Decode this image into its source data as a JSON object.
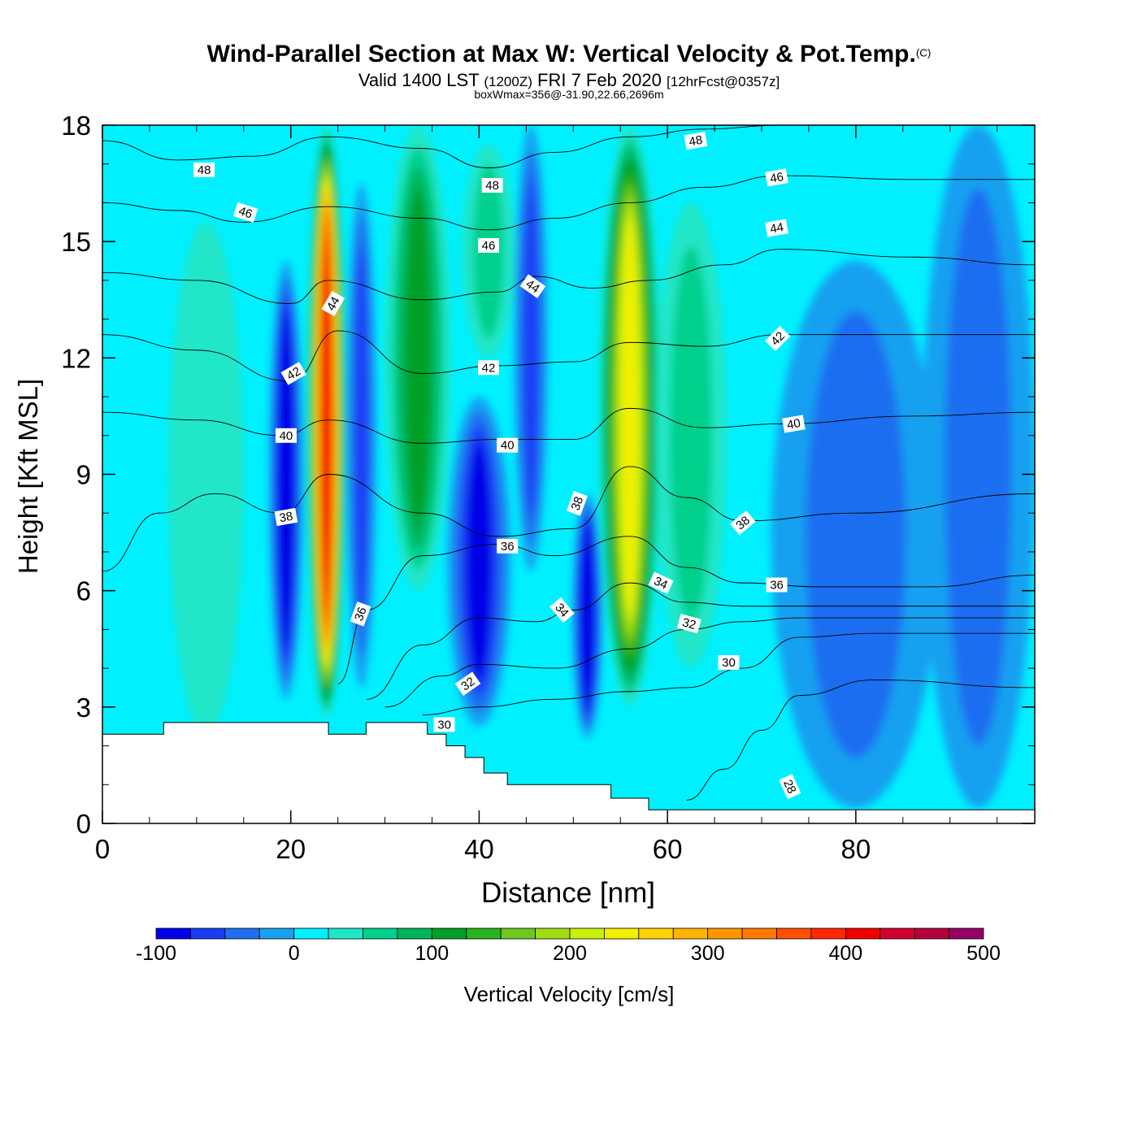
{
  "header": {
    "title": "Wind-Parallel Section at Max W: Vertical Velocity & Pot.Temp.",
    "copyright": "(C)",
    "valid_prefix": "Valid 1400 LST",
    "valid_utc": "(1200Z)",
    "valid_date": "FRI 7 Feb 2020",
    "forecast": "[12hrFcst@0357z]",
    "box_info": "boxWmax=356@-31.90,22.66,2696m"
  },
  "chart_data": {
    "type": "contour",
    "xlabel": "Distance [nm]",
    "ylabel": "Height [Kft MSL]",
    "xlim": [
      0,
      99
    ],
    "ylim": [
      0,
      18
    ],
    "x_ticks": [
      0,
      20,
      40,
      60,
      80
    ],
    "y_ticks": [
      0,
      3,
      6,
      9,
      12,
      15,
      18
    ],
    "colorbar": {
      "label": "Vertical Velocity [cm/s]",
      "ticks": [
        -100,
        0,
        100,
        200,
        300,
        400,
        500
      ],
      "levels": [
        -100,
        -75,
        -50,
        -25,
        0,
        25,
        50,
        75,
        100,
        125,
        150,
        175,
        200,
        225,
        250,
        275,
        300,
        325,
        350,
        375,
        400,
        425,
        450,
        475,
        500
      ],
      "colors": [
        "#0000e6",
        "#1a3cf5",
        "#1f6ef0",
        "#19a0f0",
        "#00f0ff",
        "#20e6c8",
        "#00d08c",
        "#00b45a",
        "#00a028",
        "#28b41e",
        "#6ec81e",
        "#a0dc14",
        "#c8f00a",
        "#f0f000",
        "#ffd200",
        "#ffb400",
        "#ff9600",
        "#ff7800",
        "#ff5000",
        "#ff2800",
        "#f00000",
        "#d20032",
        "#b4003c",
        "#960064"
      ]
    },
    "velocity_columns": [
      {
        "x": 11,
        "y0": 2.3,
        "y1": 15.5,
        "halfwidth": 4.0,
        "value": 35
      },
      {
        "x": 19.5,
        "y0": 3.2,
        "y1": 14.5,
        "halfwidth": 1.8,
        "value": -100
      },
      {
        "x": 23.8,
        "y0": 2.7,
        "y1": 18,
        "halfwidth": 2.0,
        "value": 420
      },
      {
        "x": 27.5,
        "y0": 3.5,
        "y1": 16.5,
        "halfwidth": 1.6,
        "value": -70
      },
      {
        "x": 33.5,
        "y0": 6.0,
        "y1": 18,
        "halfwidth": 3.5,
        "value": 120
      },
      {
        "x": 40,
        "y0": 2.5,
        "y1": 11.0,
        "halfwidth": 3.4,
        "value": -90
      },
      {
        "x": 41,
        "y0": 12,
        "y1": 17.5,
        "halfwidth": 2.8,
        "value": 70
      },
      {
        "x": 45.5,
        "y0": 6.5,
        "y1": 18,
        "halfwidth": 1.8,
        "value": -60
      },
      {
        "x": 51.5,
        "y0": 2.2,
        "y1": 8.5,
        "halfwidth": 1.6,
        "value": -100
      },
      {
        "x": 56,
        "y0": 3.0,
        "y1": 18,
        "halfwidth": 3.3,
        "value": 250
      },
      {
        "x": 62.5,
        "y0": 4.0,
        "y1": 16.0,
        "halfwidth": 3.8,
        "value": 55
      },
      {
        "x": 80,
        "y0": 0.4,
        "y1": 14.5,
        "halfwidth": 9.0,
        "value": -35
      },
      {
        "x": 93,
        "y0": 0.4,
        "y1": 18,
        "halfwidth": 6.0,
        "value": -35
      }
    ],
    "terrain": [
      [
        0,
        2.3
      ],
      [
        6.5,
        2.3
      ],
      [
        6.5,
        2.6
      ],
      [
        24,
        2.6
      ],
      [
        24,
        2.3
      ],
      [
        28,
        2.3
      ],
      [
        28,
        2.6
      ],
      [
        34.5,
        2.6
      ],
      [
        34.5,
        2.3
      ],
      [
        36.5,
        2.3
      ],
      [
        36.5,
        2.0
      ],
      [
        38.5,
        2.0
      ],
      [
        38.5,
        1.7
      ],
      [
        40.5,
        1.7
      ],
      [
        40.5,
        1.3
      ],
      [
        43,
        1.3
      ],
      [
        43,
        1.0
      ],
      [
        54,
        1.0
      ],
      [
        54,
        0.65
      ],
      [
        58,
        0.65
      ],
      [
        58,
        0.35
      ],
      [
        99,
        0.35
      ]
    ],
    "theta_contours": [
      {
        "label": "28",
        "points": [
          [
            62,
            0.6
          ],
          [
            66,
            1.4
          ],
          [
            70,
            2.4
          ],
          [
            74,
            3.3
          ],
          [
            82,
            3.7
          ],
          [
            99,
            3.5
          ]
        ]
      },
      {
        "label": "30",
        "points": [
          [
            34,
            2.8
          ],
          [
            40,
            3.0
          ],
          [
            48,
            3.2
          ],
          [
            56,
            3.4
          ],
          [
            62,
            3.5
          ],
          [
            68,
            4.0
          ],
          [
            74,
            4.8
          ],
          [
            82,
            4.9
          ],
          [
            99,
            4.9
          ]
        ]
      },
      {
        "label": "32",
        "points": [
          [
            30,
            3.0
          ],
          [
            36,
            3.8
          ],
          [
            40,
            4.1
          ],
          [
            48,
            4.0
          ],
          [
            56,
            4.5
          ],
          [
            62,
            5.0
          ],
          [
            68,
            5.2
          ],
          [
            74,
            5.3
          ],
          [
            82,
            5.3
          ],
          [
            99,
            5.3
          ]
        ]
      },
      {
        "label": "34",
        "points": [
          [
            28,
            3.2
          ],
          [
            34,
            4.6
          ],
          [
            40,
            5.3
          ],
          [
            46,
            5.2
          ],
          [
            50,
            5.5
          ],
          [
            56,
            6.2
          ],
          [
            62,
            5.7
          ],
          [
            68,
            5.6
          ],
          [
            76,
            5.6
          ],
          [
            99,
            5.6
          ]
        ]
      },
      {
        "label": "36",
        "points": [
          [
            25,
            3.6
          ],
          [
            28,
            5.5
          ],
          [
            34,
            6.9
          ],
          [
            42,
            7.2
          ],
          [
            48,
            6.9
          ],
          [
            56,
            7.4
          ],
          [
            62,
            6.6
          ],
          [
            68,
            6.2
          ],
          [
            76,
            6.1
          ],
          [
            88,
            6.1
          ],
          [
            99,
            6.4
          ]
        ]
      },
      {
        "label": "38",
        "points": [
          [
            0,
            6.5
          ],
          [
            6,
            8.0
          ],
          [
            12,
            8.5
          ],
          [
            19,
            8.0
          ],
          [
            24,
            9.0
          ],
          [
            34,
            8.0
          ],
          [
            42,
            7.4
          ],
          [
            50,
            7.6
          ],
          [
            56,
            9.2
          ],
          [
            62,
            8.4
          ],
          [
            68,
            7.8
          ],
          [
            80,
            8.0
          ],
          [
            99,
            8.5
          ]
        ]
      },
      {
        "label": "40",
        "points": [
          [
            0,
            10.6
          ],
          [
            10,
            10.4
          ],
          [
            19,
            10.0
          ],
          [
            24,
            10.4
          ],
          [
            34,
            9.8
          ],
          [
            42,
            9.9
          ],
          [
            50,
            9.9
          ],
          [
            56,
            10.7
          ],
          [
            64,
            10.2
          ],
          [
            72,
            10.3
          ],
          [
            86,
            10.5
          ],
          [
            99,
            10.6
          ]
        ]
      },
      {
        "label": "42",
        "points": [
          [
            0,
            12.6
          ],
          [
            10,
            12.2
          ],
          [
            20,
            11.4
          ],
          [
            25,
            12.7
          ],
          [
            34,
            11.6
          ],
          [
            42,
            11.8
          ],
          [
            50,
            11.9
          ],
          [
            56,
            12.4
          ],
          [
            64,
            12.3
          ],
          [
            72,
            12.6
          ],
          [
            86,
            12.6
          ],
          [
            99,
            12.6
          ]
        ]
      },
      {
        "label": "44",
        "points": [
          [
            0,
            14.2
          ],
          [
            10,
            14.0
          ],
          [
            20,
            13.4
          ],
          [
            24,
            14.0
          ],
          [
            34,
            13.5
          ],
          [
            42,
            13.7
          ],
          [
            46,
            14.1
          ],
          [
            52,
            13.8
          ],
          [
            58,
            14.0
          ],
          [
            66,
            14.4
          ],
          [
            72,
            14.8
          ],
          [
            86,
            14.6
          ],
          [
            99,
            14.4
          ]
        ]
      },
      {
        "label": "46",
        "points": [
          [
            0,
            16.0
          ],
          [
            8,
            15.8
          ],
          [
            15,
            15.5
          ],
          [
            24,
            15.9
          ],
          [
            34,
            15.6
          ],
          [
            41,
            15.3
          ],
          [
            48,
            15.6
          ],
          [
            56,
            16.0
          ],
          [
            64,
            16.4
          ],
          [
            72,
            16.7
          ],
          [
            86,
            16.6
          ],
          [
            99,
            16.6
          ]
        ]
      },
      {
        "label": "48",
        "points": [
          [
            0,
            17.6
          ],
          [
            8,
            17.1
          ],
          [
            16,
            17.2
          ],
          [
            24,
            17.7
          ],
          [
            34,
            17.4
          ],
          [
            41,
            16.9
          ],
          [
            48,
            17.3
          ],
          [
            56,
            17.7
          ],
          [
            64,
            17.9
          ],
          [
            72,
            18.0
          ]
        ]
      }
    ],
    "contour_labels": [
      {
        "text": "48",
        "x": 10.8,
        "y": 16.85,
        "angle": 0
      },
      {
        "text": "46",
        "x": 15.2,
        "y": 15.75,
        "angle": 18
      },
      {
        "text": "44",
        "x": 24.5,
        "y": 13.4,
        "angle": -60
      },
      {
        "text": "42",
        "x": 20.3,
        "y": 11.6,
        "angle": -30
      },
      {
        "text": "40",
        "x": 19.5,
        "y": 10.0,
        "angle": 0
      },
      {
        "text": "38",
        "x": 19.5,
        "y": 7.9,
        "angle": -10
      },
      {
        "text": "36",
        "x": 27.4,
        "y": 5.4,
        "angle": -70
      },
      {
        "text": "32",
        "x": 38.8,
        "y": 3.6,
        "angle": -35
      },
      {
        "text": "30",
        "x": 36.3,
        "y": 2.55,
        "angle": 0
      },
      {
        "text": "48",
        "x": 41.4,
        "y": 16.45,
        "angle": 0
      },
      {
        "text": "46",
        "x": 41.0,
        "y": 14.9,
        "angle": 0
      },
      {
        "text": "44",
        "x": 45.7,
        "y": 13.85,
        "angle": 35
      },
      {
        "text": "42",
        "x": 41.0,
        "y": 11.75,
        "angle": 0
      },
      {
        "text": "40",
        "x": 43.0,
        "y": 9.75,
        "angle": 0
      },
      {
        "text": "36",
        "x": 43.0,
        "y": 7.15,
        "angle": 0
      },
      {
        "text": "38",
        "x": 50.4,
        "y": 8.25,
        "angle": -70
      },
      {
        "text": "34",
        "x": 48.8,
        "y": 5.5,
        "angle": 50
      },
      {
        "text": "48",
        "x": 63.0,
        "y": 17.6,
        "angle": -10
      },
      {
        "text": "46",
        "x": 71.6,
        "y": 16.65,
        "angle": -10
      },
      {
        "text": "44",
        "x": 71.6,
        "y": 15.35,
        "angle": -10
      },
      {
        "text": "42",
        "x": 71.7,
        "y": 12.5,
        "angle": -45
      },
      {
        "text": "40",
        "x": 73.4,
        "y": 10.3,
        "angle": -10
      },
      {
        "text": "38",
        "x": 68.0,
        "y": 7.75,
        "angle": -40
      },
      {
        "text": "36",
        "x": 71.6,
        "y": 6.15,
        "angle": 0
      },
      {
        "text": "34",
        "x": 59.3,
        "y": 6.2,
        "angle": 25
      },
      {
        "text": "32",
        "x": 62.3,
        "y": 5.15,
        "angle": 15
      },
      {
        "text": "30",
        "x": 66.5,
        "y": 4.15,
        "angle": 0
      },
      {
        "text": "28",
        "x": 73.0,
        "y": 0.95,
        "angle": 65
      }
    ]
  }
}
